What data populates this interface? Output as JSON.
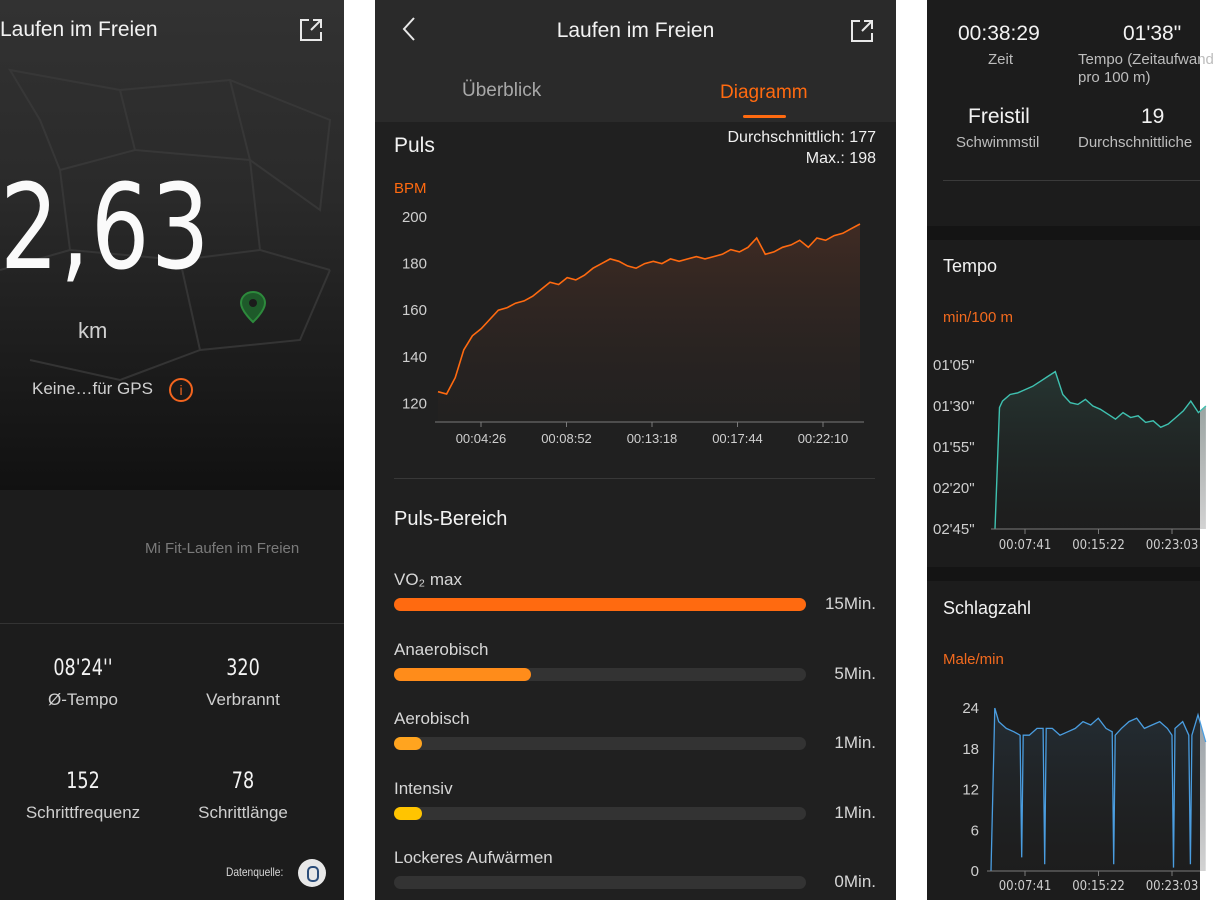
{
  "screen1": {
    "title": "Laufen im Freien",
    "distance": "2,63",
    "unit": "km",
    "gps_note": "Keine…für GPS",
    "source_label": "Mi Fit-Laufen im Freien",
    "stats": [
      {
        "value": "08'24''",
        "label": "Ø-Tempo"
      },
      {
        "value": "320",
        "label": "Verbrannt"
      },
      {
        "value": "152",
        "label": "Schrittfrequenz"
      },
      {
        "value": "78",
        "label": "Schrittlänge"
      }
    ],
    "datasource_label": "Datenquelle:"
  },
  "screen2": {
    "title": "Laufen im Freien",
    "tabs": [
      {
        "label": "Überblick",
        "active": false
      },
      {
        "label": "Diagramm",
        "active": true
      }
    ],
    "puls_title": "Puls",
    "avg_label": "Durchschnittlich: 177",
    "max_label": "Max.: 198",
    "unit_label": "BPM",
    "zones_title": "Puls-Bereich",
    "zones": [
      {
        "label": "VO₂ max",
        "value": "15Min.",
        "fraction": 1.0,
        "color": "#ff6a10"
      },
      {
        "label": "Anaerobisch",
        "value": "5Min.",
        "fraction": 0.333,
        "color": "#ff8c1a"
      },
      {
        "label": "Aerobisch",
        "value": "1Min.",
        "fraction": 0.067,
        "color": "#ffa41f"
      },
      {
        "label": "Intensiv",
        "value": "1Min.",
        "fraction": 0.067,
        "color": "#ffc400"
      },
      {
        "label": "Lockeres Aufwärmen",
        "value": "0Min.",
        "fraction": 0.0,
        "color": "#ffd000"
      }
    ]
  },
  "screen3": {
    "stats": [
      {
        "value": "00:38:29",
        "label": "Zeit"
      },
      {
        "value": "01'38\"",
        "label": "Tempo (Zeitaufwand pro 100 m)"
      },
      {
        "value": "Freistil",
        "label": "Schwimmstil"
      },
      {
        "value": "19",
        "label": "Durchschnittliche"
      }
    ],
    "tempo_title": "Tempo",
    "tempo_unit": "min/100 m",
    "stroke_title": "Schlagzahl",
    "stroke_unit": "Male/min"
  },
  "chart_data": [
    {
      "type": "area",
      "ylabel": "BPM",
      "ylim": [
        112,
        203
      ],
      "yticks": [
        120,
        140,
        160,
        180,
        200
      ],
      "xticks": [
        "00:04:26",
        "00:08:52",
        "00:13:18",
        "00:17:44",
        "00:22:10"
      ],
      "series": [
        {
          "color": "#ff6a10",
          "x": [
            0,
            0.5,
            1,
            1.5,
            2,
            2.5,
            3,
            3.5,
            4,
            4.5,
            5,
            5.5,
            6,
            6.5,
            7,
            7.5,
            8,
            8.5,
            9,
            9.5,
            10,
            10.5,
            11,
            11.5,
            12,
            12.5,
            13,
            13.5,
            14,
            14.5,
            15,
            15.5,
            16,
            16.5,
            17,
            17.5,
            18,
            18.5,
            19,
            19.5,
            20,
            20.5,
            21,
            21.5,
            22,
            22.5,
            23,
            23.5,
            24,
            24.5
          ],
          "values": [
            125,
            124,
            131,
            143,
            149,
            152,
            156,
            160,
            161,
            163,
            164,
            166,
            169,
            172,
            171,
            174,
            173,
            175,
            178,
            180,
            182,
            181,
            179,
            178,
            180,
            181,
            180,
            182,
            181,
            182,
            183,
            182,
            183,
            184,
            186,
            185,
            187,
            191,
            184,
            185,
            187,
            188,
            190,
            187,
            191,
            190,
            192,
            193,
            195,
            197
          ]
        }
      ]
    },
    {
      "type": "line",
      "ylabel": "min/100 m",
      "yticks": [
        "01'05\"",
        "01'30\"",
        "01'55\"",
        "02'20\"",
        "02'45\""
      ],
      "xticks": [
        "00:07:41",
        "00:15:22",
        "00:23:03"
      ],
      "series": [
        {
          "color": "#3fc1b0",
          "x": [
            0,
            0.6,
            1,
            2,
            3,
            4,
            5,
            6,
            7,
            8,
            9,
            10,
            11,
            12,
            13,
            14,
            15,
            16,
            17,
            18,
            19,
            20,
            21,
            22,
            23,
            24,
            25,
            26,
            27,
            28
          ],
          "values": [
            165,
            91,
            87,
            83,
            82,
            80,
            78,
            75,
            72,
            69,
            83,
            88,
            89,
            86,
            90,
            92,
            95,
            98,
            94,
            97,
            96,
            100,
            99,
            103,
            101,
            97,
            93,
            87,
            94,
            90
          ]
        }
      ]
    },
    {
      "type": "line",
      "ylabel": "Male/min",
      "ylim": [
        0,
        24
      ],
      "yticks": [
        0,
        6,
        12,
        18,
        24
      ],
      "xticks": [
        "00:07:41",
        "00:15:22",
        "00:23:03"
      ],
      "series": [
        {
          "color": "#4a9de0",
          "x": [
            0,
            0.5,
            1,
            2,
            3,
            3.8,
            4,
            4.2,
            5,
            6,
            6.8,
            7,
            7.2,
            8,
            9,
            10,
            11,
            12,
            13,
            14,
            15,
            15.8,
            16,
            16.2,
            17,
            18,
            19,
            20,
            21,
            22,
            23,
            23.6,
            23.8,
            24,
            25,
            25.8,
            26,
            26.2,
            27,
            28
          ],
          "values": [
            0,
            24,
            22,
            21,
            20.5,
            20,
            2,
            20,
            20,
            21,
            21,
            1,
            21,
            21,
            20,
            20.5,
            21,
            22,
            21.5,
            22.5,
            21,
            20.5,
            1,
            20,
            21,
            22,
            22.5,
            21,
            21.5,
            22,
            21,
            20,
            0.5,
            21,
            22,
            20,
            1,
            20,
            23,
            19
          ]
        }
      ]
    }
  ]
}
